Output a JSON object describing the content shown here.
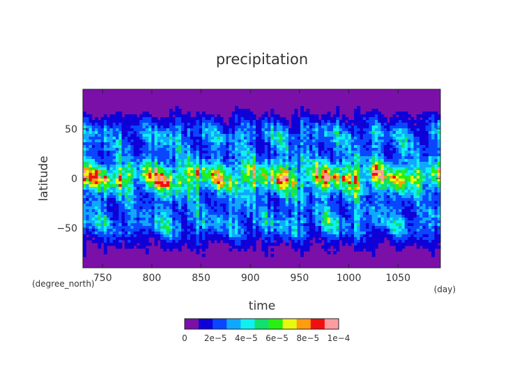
{
  "chart_data": {
    "type": "heatmap",
    "title": "precipitation",
    "xlabel": "time",
    "ylabel": "latitude",
    "x_units": "(day)",
    "y_units": "(degree_north)",
    "xlim": [
      730,
      1093
    ],
    "ylim": [
      -90,
      90
    ],
    "xticks": [
      {
        "value": 750,
        "label": "750"
      },
      {
        "value": 800,
        "label": "800"
      },
      {
        "value": 850,
        "label": "850"
      },
      {
        "value": 900,
        "label": "900"
      },
      {
        "value": 950,
        "label": "950"
      },
      {
        "value": 1000,
        "label": "1000"
      },
      {
        "value": 1050,
        "label": "1050"
      }
    ],
    "yticks": [
      {
        "value": 50,
        "label": "50"
      },
      {
        "value": 0,
        "label": "0"
      },
      {
        "value": -50,
        "label": "−50"
      }
    ],
    "z_levels": [
      0,
      1e-05,
      2e-05,
      3e-05,
      4e-05,
      5e-05,
      6e-05,
      7e-05,
      8e-05,
      9e-05,
      0.0001
    ],
    "colorbar_colors": [
      "#7a10a8",
      "#0f00d8",
      "#0a46ff",
      "#10a8ff",
      "#10f0f0",
      "#10e06c",
      "#28f010",
      "#e8f810",
      "#ff9c10",
      "#f01010",
      "#ff9ca0"
    ],
    "colorbar_ticks": [
      {
        "value": 0,
        "label": "0"
      },
      {
        "value": 2e-05,
        "label": "2e−5"
      },
      {
        "value": 4e-05,
        "label": "4e−5"
      },
      {
        "value": 6e-05,
        "label": "6e−5"
      },
      {
        "value": 8e-05,
        "label": "8e−5"
      },
      {
        "value": 0.0001,
        "label": "1e−4"
      }
    ],
    "latitude_profile": [
      {
        "lat": -90,
        "value": 2e-06
      },
      {
        "lat": -75,
        "value": 8e-06
      },
      {
        "lat": -65,
        "value": 1.6e-05
      },
      {
        "lat": -55,
        "value": 3.2e-05
      },
      {
        "lat": -45,
        "value": 4.2e-05
      },
      {
        "lat": -35,
        "value": 3.6e-05
      },
      {
        "lat": -25,
        "value": 3.4e-05
      },
      {
        "lat": -15,
        "value": 4.4e-05
      },
      {
        "lat": -8,
        "value": 6.5e-05
      },
      {
        "lat": 0,
        "value": 8.5e-05
      },
      {
        "lat": 8,
        "value": 7.4e-05
      },
      {
        "lat": 15,
        "value": 5e-05
      },
      {
        "lat": 25,
        "value": 3.4e-05
      },
      {
        "lat": 35,
        "value": 3.6e-05
      },
      {
        "lat": 45,
        "value": 4e-05
      },
      {
        "lat": 55,
        "value": 2.6e-05
      },
      {
        "lat": 65,
        "value": 1.2e-05
      },
      {
        "lat": 75,
        "value": 5e-06
      },
      {
        "lat": 90,
        "value": 2e-06
      }
    ],
    "grid": false
  }
}
